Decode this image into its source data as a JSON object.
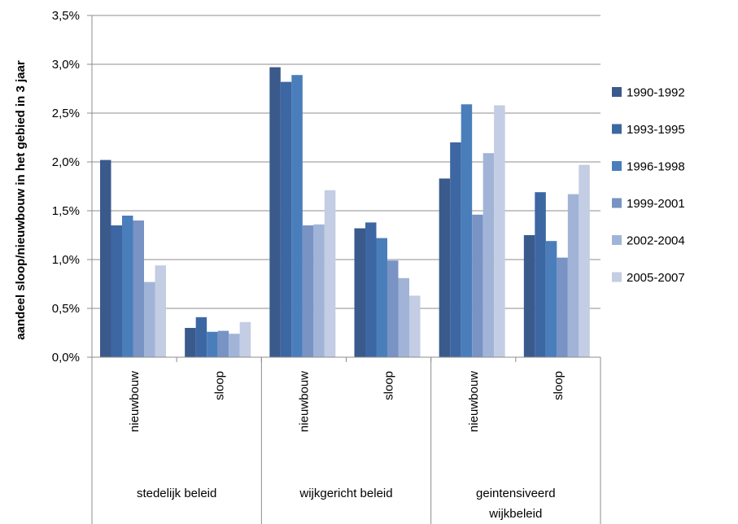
{
  "chart_data": {
    "type": "bar",
    "ylabel": "aandeel sloop/nieuwbouw in het gebied in 3 jaar",
    "ylim": [
      0,
      3.5
    ],
    "yticks": [
      "0,0%",
      "0,5%",
      "1,0%",
      "1,5%",
      "2,0%",
      "2,5%",
      "3,0%",
      "3,5%"
    ],
    "ytick_values": [
      0,
      0.5,
      1.0,
      1.5,
      2.0,
      2.5,
      3.0,
      3.5
    ],
    "grid": true,
    "legend_position": "right",
    "groups": [
      {
        "label": "stedelijk beleid",
        "label_lines": [
          "stedelijk beleid"
        ],
        "categories": [
          "nieuwbouw",
          "sloop"
        ]
      },
      {
        "label": "wijkgericht beleid",
        "label_lines": [
          "wijkgericht beleid"
        ],
        "categories": [
          "nieuwbouw",
          "sloop"
        ]
      },
      {
        "label": "geintensiveerd wijkbeleid",
        "label_lines": [
          "geintensiveerd",
          "wijkbeleid"
        ],
        "categories": [
          "nieuwbouw",
          "sloop"
        ]
      }
    ],
    "series": [
      {
        "name": "1990-1992",
        "color": "#3a5a8c",
        "values": [
          2.02,
          0.3,
          2.97,
          1.32,
          1.83,
          1.25
        ]
      },
      {
        "name": "1993-1995",
        "color": "#3d67a3",
        "values": [
          1.35,
          0.41,
          2.82,
          1.38,
          2.2,
          1.69
        ]
      },
      {
        "name": "1996-1998",
        "color": "#4a7ebb",
        "values": [
          1.45,
          0.26,
          2.89,
          1.22,
          2.59,
          1.19
        ]
      },
      {
        "name": "1999-2001",
        "color": "#7893c4",
        "values": [
          1.4,
          0.27,
          1.35,
          0.99,
          1.46,
          1.02
        ]
      },
      {
        "name": "2002-2004",
        "color": "#a1b4d8",
        "values": [
          0.77,
          0.24,
          1.36,
          0.81,
          2.09,
          1.67
        ]
      },
      {
        "name": "2005-2007",
        "color": "#c3cde3",
        "values": [
          0.94,
          0.36,
          1.71,
          0.63,
          2.58,
          1.97
        ]
      }
    ]
  }
}
